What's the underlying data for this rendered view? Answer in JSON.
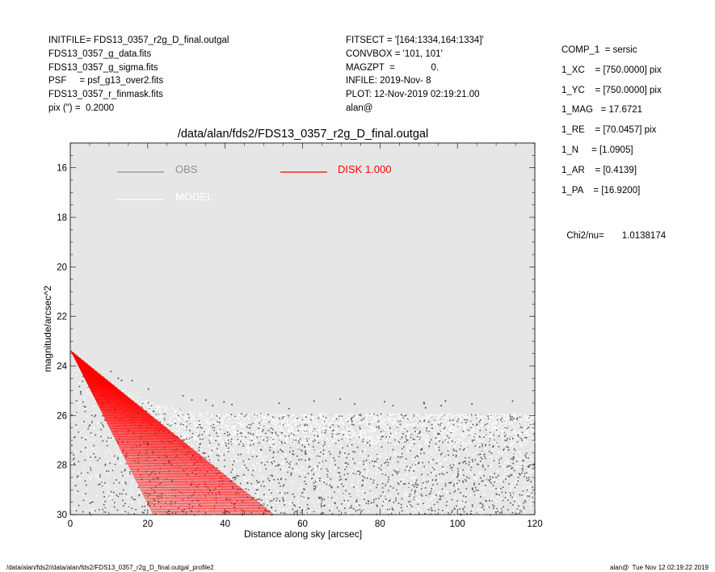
{
  "header_left": [
    "INITFILE= FDS13_0357_r2g_D_final.outgal",
    "FDS13_0357_g_data.fits",
    "FDS13_0357_g_sigma.fits",
    "PSF     = psf_g13_over2.fits",
    "FDS13_0357_r_finmask.fits",
    "pix (\") =  0.2000"
  ],
  "header_mid": [
    "FITSECT = '[164:1334,164:1334]'",
    "CONVBOX = '101, 101'",
    "MAGZPT  =              0.",
    "INFILE: 2019-Nov- 8",
    "PLOT: 12-Nov-2019 02:19:21.00",
    "alan@"
  ],
  "params": [
    "COMP_1  = sersic",
    "1_XC    = [750.0000] pix",
    "1_YC    = [750.0000] pix",
    "1_MAG   = 17.6721",
    "1_RE    = [70.0457] pix",
    "1_N     = [1.0905]",
    "1_AR    = [0.4139]",
    "1_PA    = [16.9200]"
  ],
  "chi": {
    "label": "Chi2/nu=",
    "value": "1.0138174"
  },
  "footer": {
    "left": "/data/alan/fds2//data/alan/fds2/FDS13_0357_r2g_D_final.outgal_profile2",
    "right": "alan@  Tue Nov 12 02:19:22 2019"
  },
  "colors": {
    "plot_bg": "#e6e6e6",
    "obs": "#909090",
    "model": "#ffffff",
    "disk": "#ff0000",
    "scatter_dark": "#555555"
  },
  "chart_data": {
    "type": "scatter",
    "title": "/data/alan/fds2/FDS13_0357_r2g_D_final.outgal",
    "xlabel": "Distance along sky [arcsec]",
    "ylabel": "magnitude/arcsec^2",
    "xlim": [
      0,
      120
    ],
    "ylim": [
      30,
      15
    ],
    "inverted_y": true,
    "xticks": [
      "0",
      "20",
      "40",
      "60",
      "80",
      "100",
      "120"
    ],
    "yticks": [
      "16",
      "18",
      "20",
      "22",
      "24",
      "26",
      "28",
      "30"
    ],
    "legend": [
      {
        "name": "OBS",
        "color": "#909090"
      },
      {
        "name": "MODEL",
        "color": "#ffffff"
      },
      {
        "name": "DISK  1.000",
        "color": "#ff0000"
      }
    ],
    "series": [
      {
        "name": "OBS",
        "description_points": [
          {
            "x": 0.5,
            "y": 23.4
          },
          {
            "x": 10,
            "y": 24.7
          },
          {
            "x": 20,
            "y": 25.4
          },
          {
            "x": 30,
            "y": 25.8
          },
          {
            "x": 40,
            "y": 25.9
          },
          {
            "x": 60,
            "y": 25.9
          },
          {
            "x": 80,
            "y": 25.9
          },
          {
            "x": 100,
            "y": 25.9
          },
          {
            "x": 120,
            "y": 25.9
          }
        ]
      },
      {
        "name": "DISK  1.000",
        "fan_origin": {
          "x": 0.2,
          "y": 23.4
        },
        "fan_end_min_x": 21.5,
        "fan_end_max_x": 52.5,
        "fan_end_y": 30
      }
    ]
  }
}
